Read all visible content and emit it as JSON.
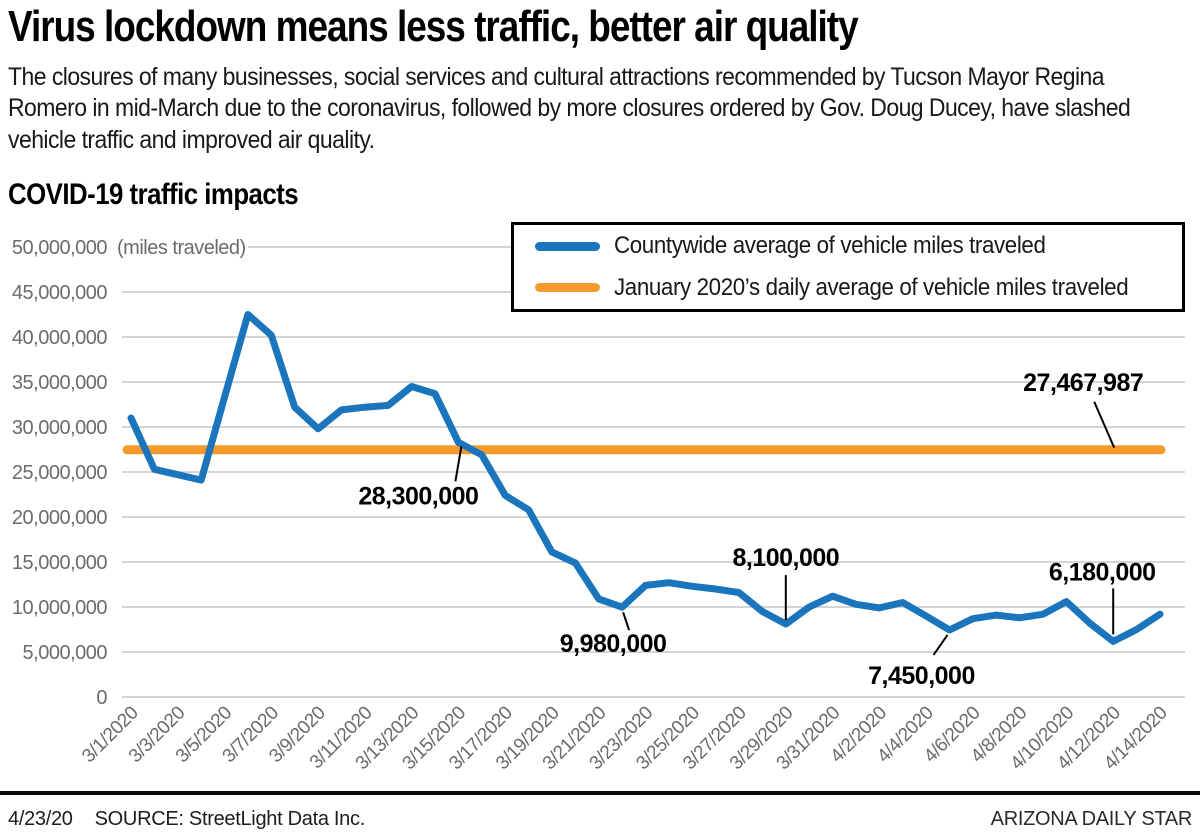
{
  "header": {
    "headline": "Virus lockdown means less traffic, better air quality",
    "subtext": "The closures of many businesses, social services and cultural attractions recommended by Tucson Mayor Regina Romero in mid-March due to the coronavirus, followed by more closures ordered by Gov. Doug Ducey, have slashed vehicle traffic and improved air quality."
  },
  "chart_title": "COVID-19 traffic impacts",
  "legend": {
    "items": [
      {
        "label": "Countywide average of vehicle miles traveled",
        "color": "#1b75bc"
      },
      {
        "label": "January 2020’s daily average of vehicle miles traveled",
        "color": "#f59b2d"
      }
    ]
  },
  "footer": {
    "date": "4/23/20",
    "source": "SOURCE: StreetLight Data Inc.",
    "credit": "ARIZONA DAILY STAR"
  },
  "chart_data": {
    "type": "line",
    "title": "COVID-19 traffic impacts",
    "y_axis_note": "(miles traveled)",
    "ylabel": "",
    "xlabel": "",
    "ylim": [
      0,
      50000000
    ],
    "y_tick_step": 5000000,
    "y_tick_labels": [
      "0",
      "5,000,000",
      "10,000,000",
      "15,000,000",
      "20,000,000",
      "25,000,000",
      "30,000,000",
      "35,000,000",
      "40,000,000",
      "45,000,000",
      "50,000,000"
    ],
    "grid": "horizontal",
    "legend_position": "top-right",
    "x": [
      "3/1/2020",
      "3/2/2020",
      "3/3/2020",
      "3/4/2020",
      "3/5/2020",
      "3/6/2020",
      "3/7/2020",
      "3/8/2020",
      "3/9/2020",
      "3/10/2020",
      "3/11/2020",
      "3/12/2020",
      "3/13/2020",
      "3/14/2020",
      "3/15/2020",
      "3/16/2020",
      "3/17/2020",
      "3/18/2020",
      "3/19/2020",
      "3/20/2020",
      "3/21/2020",
      "3/22/2020",
      "3/23/2020",
      "3/24/2020",
      "3/25/2020",
      "3/26/2020",
      "3/27/2020",
      "3/28/2020",
      "3/29/2020",
      "3/30/2020",
      "3/31/2020",
      "4/1/2020",
      "4/2/2020",
      "4/3/2020",
      "4/4/2020",
      "4/5/2020",
      "4/6/2020",
      "4/7/2020",
      "4/8/2020",
      "4/9/2020",
      "4/10/2020",
      "4/11/2020",
      "4/12/2020",
      "4/13/2020",
      "4/14/2020"
    ],
    "x_tick_labels": [
      "3/1/2020",
      "3/3/2020",
      "3/5/2020",
      "3/7/2020",
      "3/9/2020",
      "3/11/2020",
      "3/13/2020",
      "3/15/2020",
      "3/17/2020",
      "3/19/2020",
      "3/21/2020",
      "3/23/2020",
      "3/25/2020",
      "3/27/2020",
      "3/29/2020",
      "3/31/2020",
      "4/2/2020",
      "4/4/2020",
      "4/6/2020",
      "4/8/2020",
      "4/10/2020",
      "4/12/2020",
      "4/14/2020"
    ],
    "series": [
      {
        "name": "Countywide average of vehicle miles traveled",
        "color": "#1b75bc",
        "values": [
          31000000,
          25300000,
          24700000,
          24100000,
          33300000,
          42500000,
          40200000,
          32200000,
          29800000,
          31900000,
          32200000,
          32400000,
          34500000,
          33700000,
          28300000,
          26900000,
          22400000,
          20800000,
          16100000,
          14900000,
          10900000,
          9980000,
          12400000,
          12700000,
          12300000,
          12000000,
          11600000,
          9500000,
          8100000,
          10000000,
          11200000,
          10300000,
          9900000,
          10500000,
          9000000,
          7450000,
          8700000,
          9100000,
          8800000,
          9200000,
          10600000,
          8200000,
          6180000,
          7500000,
          9200000
        ]
      },
      {
        "name": "January 2020’s daily average of vehicle miles traveled",
        "color": "#f59b2d",
        "constant_value": 27467987
      }
    ],
    "annotations": [
      {
        "label": "28,300,000",
        "date": "3/15/2020",
        "value": 28300000,
        "series": "countywide"
      },
      {
        "label": "9,980,000",
        "date": "3/22/2020",
        "value": 9980000,
        "series": "countywide"
      },
      {
        "label": "8,100,000",
        "date": "3/29/2020",
        "value": 8100000,
        "series": "countywide"
      },
      {
        "label": "7,450,000",
        "date": "4/5/2020",
        "value": 7450000,
        "series": "countywide"
      },
      {
        "label": "6,180,000",
        "date": "4/12/2020",
        "value": 6180000,
        "series": "countywide"
      },
      {
        "label": "27,467,987",
        "date": "4/12/2020",
        "value": 27467987,
        "series": "baseline"
      }
    ]
  }
}
